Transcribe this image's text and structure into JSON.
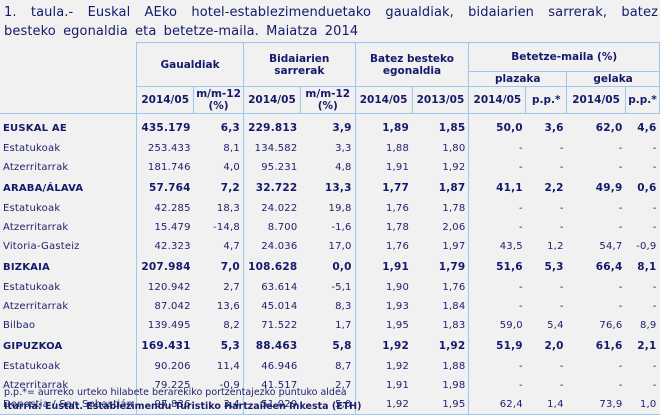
{
  "title": "1. taula.- Euskal AEko hotel-establezimenduetako gaualdiak, bidaiarien sarrerak, batez besteko egonaldia eta betetze-maila. Maiatza 2014",
  "header": {
    "groups": {
      "gaualdiak": "Gaualdiak",
      "sarrerak": "Bidaiarien sarrerak",
      "egonaldia": "Batez besteko egonaldia",
      "betetze": "Betetze-maila (%)",
      "plazaka": "plazaka",
      "gelaka": "gelaka"
    },
    "cols": [
      "2014/05",
      "m/m-12 (%)",
      "2014/05",
      "m/m-12 (%)",
      "2014/05",
      "2013/05",
      "2014/05",
      "p.p.*",
      "2014/05",
      "p.p.*"
    ]
  },
  "rows": [
    {
      "label": "EUSKAL AE",
      "main": true,
      "v": [
        "435.179",
        "6,3",
        "229.813",
        "3,9",
        "1,89",
        "1,85",
        "50,0",
        "3,6",
        "62,0",
        "4,6"
      ]
    },
    {
      "label": "Estatukoak",
      "v": [
        "253.433",
        "8,1",
        "134.582",
        "3,3",
        "1,88",
        "1,80",
        "-",
        "-",
        "-",
        "-"
      ]
    },
    {
      "label": "Atzerritarrak",
      "v": [
        "181.746",
        "4,0",
        "95.231",
        "4,8",
        "1,91",
        "1,92",
        "-",
        "-",
        "-",
        "-"
      ]
    },
    {
      "label": "ARABA/ÁLAVA",
      "main": true,
      "v": [
        "57.764",
        "7,2",
        "32.722",
        "13,3",
        "1,77",
        "1,87",
        "41,1",
        "2,2",
        "49,9",
        "0,6"
      ]
    },
    {
      "label": "Estatukoak",
      "v": [
        "42.285",
        "18,3",
        "24.022",
        "19,8",
        "1,76",
        "1,78",
        "-",
        "-",
        "-",
        "-"
      ]
    },
    {
      "label": "Atzerritarrak",
      "v": [
        "15.479",
        "-14,8",
        "8.700",
        "-1,6",
        "1,78",
        "2,06",
        "-",
        "-",
        "-",
        "-"
      ]
    },
    {
      "label": "Vitoria-Gasteiz",
      "v": [
        "42.323",
        "4,7",
        "24.036",
        "17,0",
        "1,76",
        "1,97",
        "43,5",
        "1,2",
        "54,7",
        "-0,9"
      ]
    },
    {
      "label": "BIZKAIA",
      "main": true,
      "v": [
        "207.984",
        "7,0",
        "108.628",
        "0,0",
        "1,91",
        "1,79",
        "51,6",
        "5,3",
        "66,4",
        "8,1"
      ]
    },
    {
      "label": "Estatukoak",
      "v": [
        "120.942",
        "2,7",
        "63.614",
        "-5,1",
        "1,90",
        "1,76",
        "-",
        "-",
        "-",
        "-"
      ]
    },
    {
      "label": "Atzerritarrak",
      "v": [
        "87.042",
        "13,6",
        "45.014",
        "8,3",
        "1,93",
        "1,84",
        "-",
        "-",
        "-",
        "-"
      ]
    },
    {
      "label": "Bilbao",
      "v": [
        "139.495",
        "8,2",
        "71.522",
        "1,7",
        "1,95",
        "1,83",
        "59,0",
        "5,4",
        "76,6",
        "8,9"
      ]
    },
    {
      "label": "GIPUZKOA",
      "main": true,
      "v": [
        "169.431",
        "5,3",
        "88.463",
        "5,8",
        "1,92",
        "1,92",
        "51,9",
        "2,0",
        "61,6",
        "2,1"
      ]
    },
    {
      "label": "Estatukoak",
      "v": [
        "90.206",
        "11,4",
        "46.946",
        "8,7",
        "1,92",
        "1,88",
        "-",
        "-",
        "-",
        "-"
      ]
    },
    {
      "label": "Atzerritarrak",
      "v": [
        "79.225",
        "-0,9",
        "41.517",
        "2,7",
        "1,91",
        "1,98",
        "-",
        "-",
        "-",
        "-"
      ]
    },
    {
      "label": "Donostia / San Sebastián",
      "v": [
        "97.836",
        "3,4",
        "51.029",
        "5,0",
        "1,92",
        "1,95",
        "62,4",
        "1,4",
        "73,9",
        "1,0"
      ]
    }
  ],
  "notes": {
    "pp": "p.p.*= aurreko urteko hilabete berarekiko portzentajezko puntuko aldea",
    "source": "Iturria: Eustat. Establezimendu Turistiko Hartzaileen Inkesta (ETH)"
  }
}
